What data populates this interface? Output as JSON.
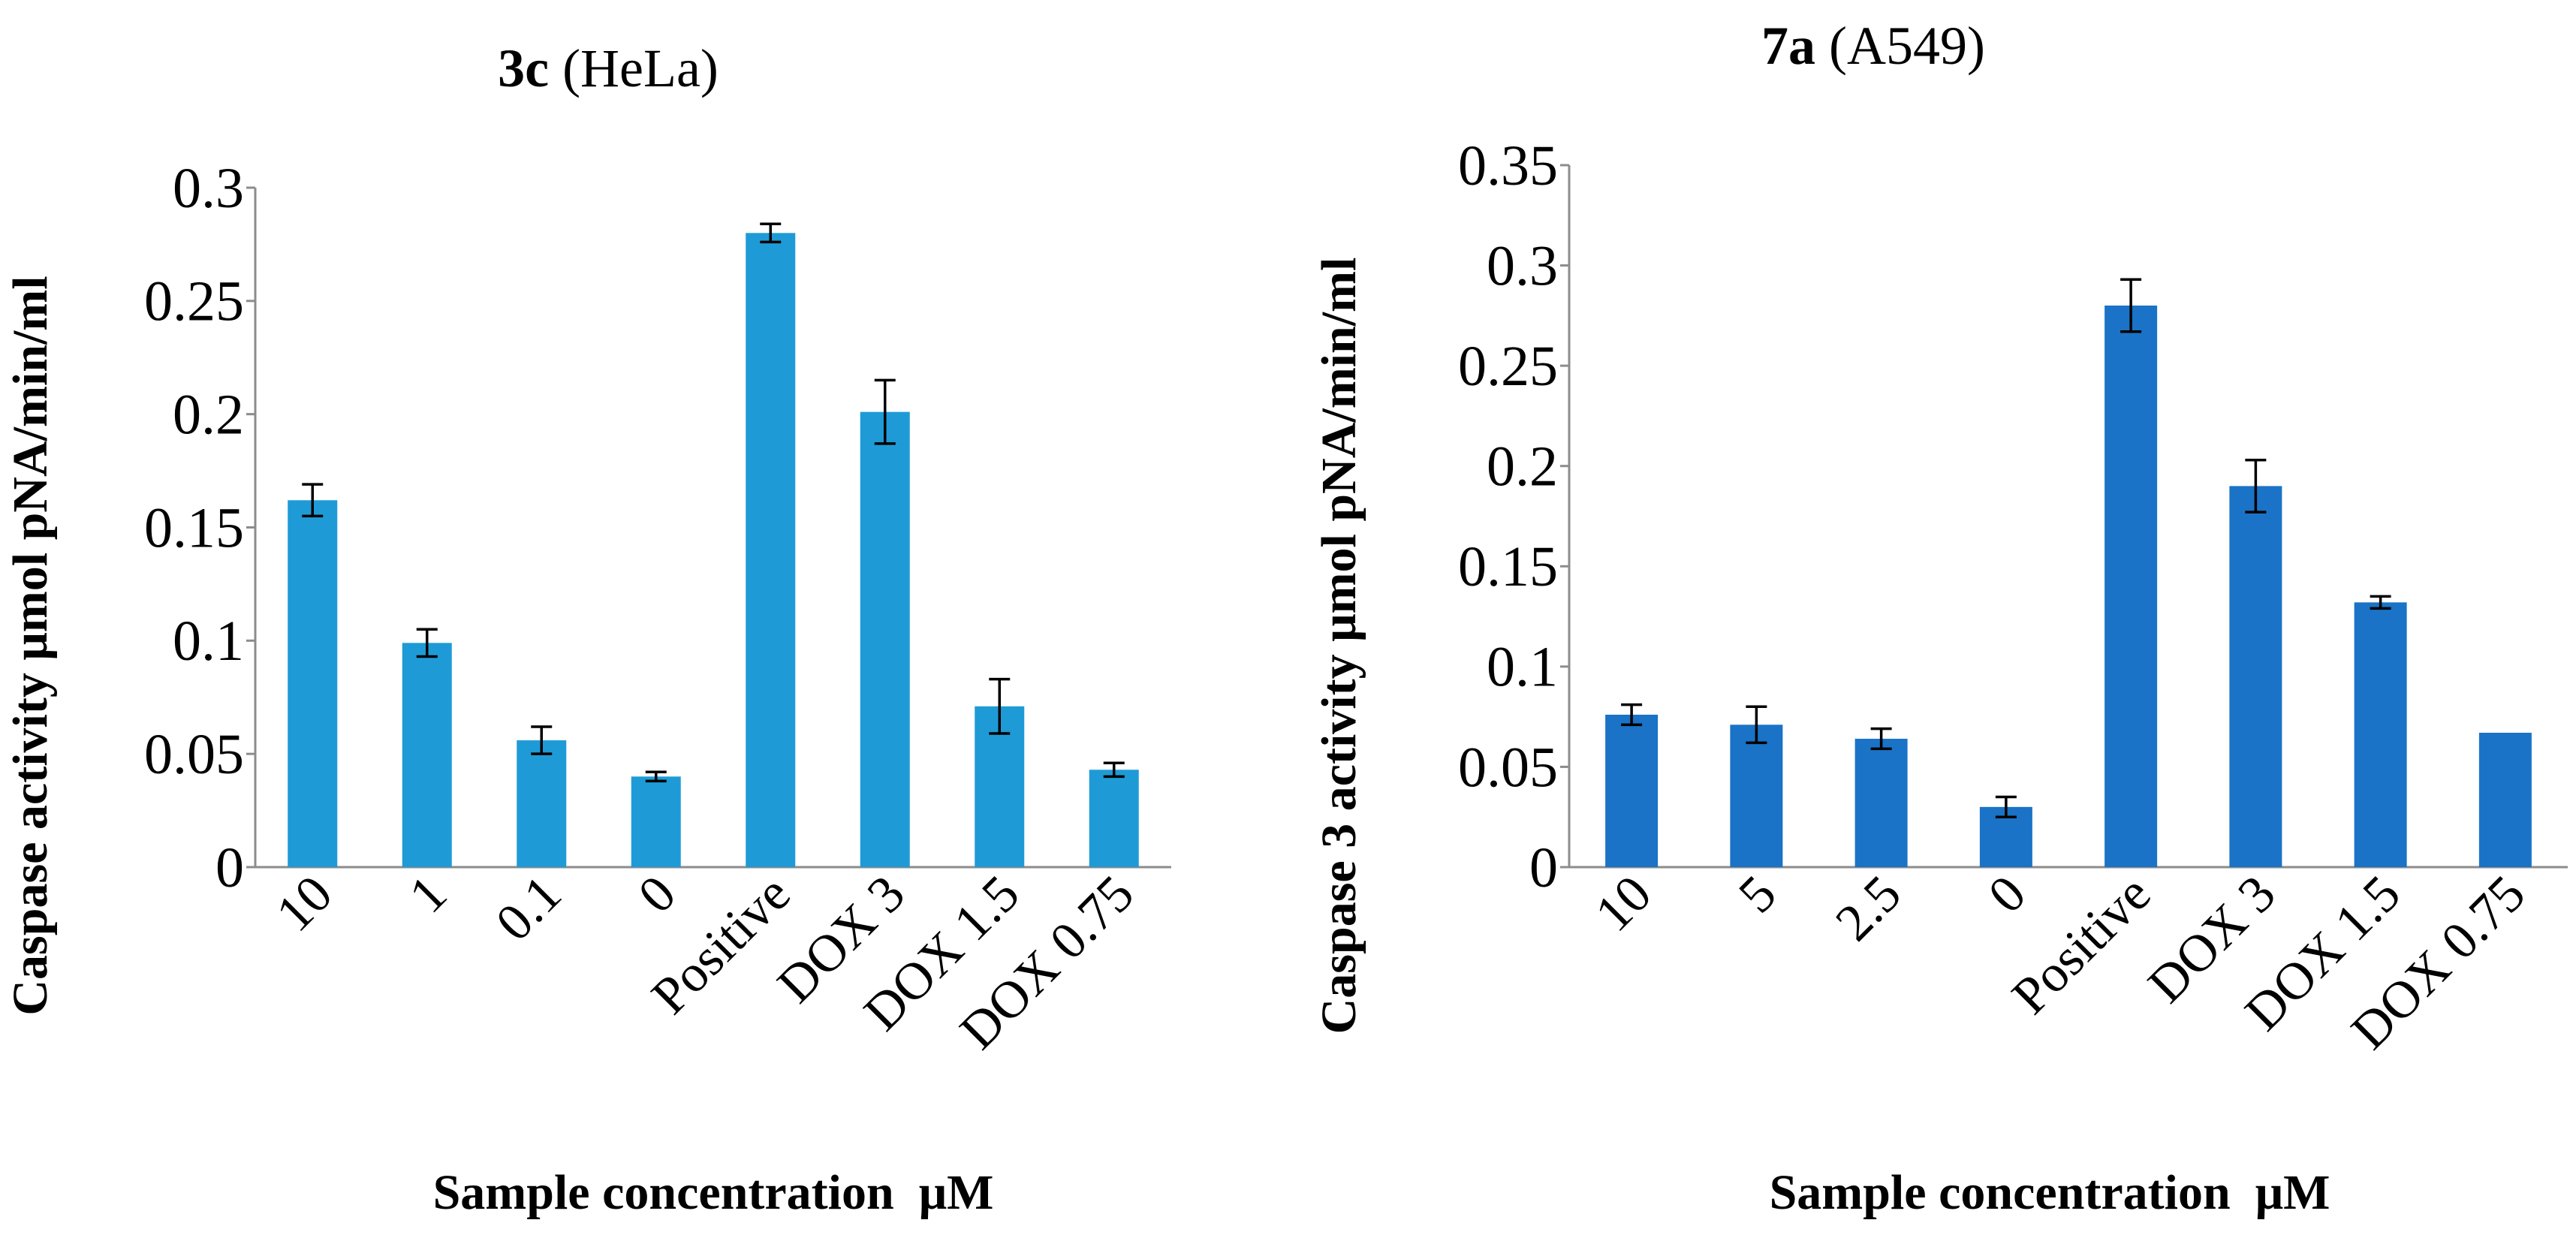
{
  "chart_data": [
    {
      "type": "bar",
      "title_bold": "3c",
      "title_rest": " (HeLa)",
      "xlabel": "Sample concentration  μM",
      "ylabel": "Caspase activity μmol pNA/min/ml",
      "ylim": [
        0,
        0.3
      ],
      "yticks": [
        0,
        0.05,
        0.1,
        0.15,
        0.2,
        0.25,
        0.3
      ],
      "ytick_labels": [
        "0",
        "0.05",
        "0.1",
        "0.15",
        "0.2",
        "0.25",
        "0.3"
      ],
      "categories": [
        "10",
        "1",
        "0.1",
        "0",
        "Positive",
        "DOX 3",
        "DOX 1.5",
        "DOX 0.75"
      ],
      "values": [
        0.162,
        0.099,
        0.056,
        0.04,
        0.28,
        0.201,
        0.071,
        0.043
      ],
      "errors": [
        0.007,
        0.006,
        0.006,
        0.002,
        0.004,
        0.014,
        0.012,
        0.003
      ],
      "color": "#1e9bd7"
    },
    {
      "type": "bar",
      "title_bold": "7a",
      "title_rest": " (A549)",
      "xlabel": "Sample concentration  μM",
      "ylabel": "Caspase 3 activity μmol pNA/min/ml",
      "ylim": [
        0,
        0.35
      ],
      "yticks": [
        0,
        0.05,
        0.1,
        0.15,
        0.2,
        0.25,
        0.3,
        0.35
      ],
      "ytick_labels": [
        "0",
        "0.05",
        "0.1",
        "0.15",
        "0.2",
        "0.25",
        "0.3",
        "0.35"
      ],
      "categories": [
        "10",
        "5",
        "2.5",
        "0",
        "Positive",
        "DOX 3",
        "DOX 1.5",
        "DOX 0.75"
      ],
      "values": [
        0.076,
        0.071,
        0.064,
        0.03,
        0.28,
        0.19,
        0.132,
        0.067
      ],
      "errors": [
        0.005,
        0.009,
        0.005,
        0.005,
        0.013,
        0.013,
        0.003,
        0
      ],
      "color": "#1a73c6"
    }
  ]
}
